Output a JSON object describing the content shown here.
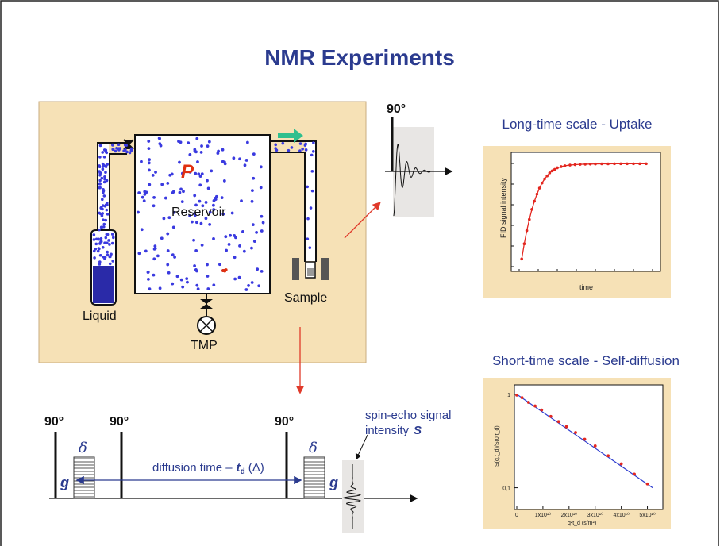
{
  "title": "NMR Experiments",
  "apparatus": {
    "liquid_label": "Liquid",
    "reservoir_label": "Reservoir",
    "pressure_label": "P",
    "sample_label": "Sample",
    "pump_label": "TMP"
  },
  "fid_pulse": {
    "angle_label": "90°"
  },
  "pulse_sequence": {
    "pulse1_label": "90°",
    "pulse2_label": "90°",
    "pulse3_label": "90°",
    "delta_left": "δ",
    "delta_right": "δ",
    "g_left": "g",
    "g_right": "g",
    "diffusion_prefix": "diffusion time –",
    "td_symbol": "t",
    "td_sub": "d",
    "td_paren": "(Δ)",
    "echo_label_line1": "spin-echo signal",
    "echo_label_line2": "intensity",
    "echo_symbol": "S"
  },
  "uptake_panel": {
    "heading": "Long-time scale - Uptake",
    "ylabel": "FID signal intensity",
    "xlabel": "time"
  },
  "diffusion_panel": {
    "heading": "Short-time scale - Self-diffusion",
    "ylabel": "S(q,t_d)/S(0,t_d)",
    "xlabel": "q²t_d (s/m²)",
    "y_ticks": [
      "1",
      "0,1"
    ],
    "x_ticks": [
      "0",
      "1x10¹⁰",
      "2x10¹⁰",
      "3x10¹⁰",
      "4x10¹⁰",
      "5x10¹⁰"
    ]
  },
  "colors": {
    "panel_bg": "#f6e1b6",
    "title": "#2b3b8f",
    "dot_blue": "#3a3ae0",
    "pressure_red": "#e03010",
    "arrow_red": "#e03a2a",
    "arrow_teal": "#2fbf8e",
    "uptake_curve": "#e3261f"
  },
  "chart_data": [
    {
      "type": "scatter",
      "title": "Long-time scale - Uptake",
      "xlabel": "time",
      "ylabel": "FID signal intensity",
      "x": [
        0.02,
        0.04,
        0.06,
        0.08,
        0.1,
        0.12,
        0.14,
        0.16,
        0.18,
        0.2,
        0.22,
        0.24,
        0.26,
        0.28,
        0.3,
        0.33,
        0.36,
        0.4,
        0.44,
        0.48,
        0.52,
        0.56,
        0.6,
        0.65,
        0.7,
        0.75,
        0.8,
        0.85,
        0.9,
        0.95,
        1.0
      ],
      "y": [
        0.06,
        0.21,
        0.34,
        0.45,
        0.55,
        0.63,
        0.7,
        0.76,
        0.81,
        0.85,
        0.88,
        0.91,
        0.93,
        0.945,
        0.96,
        0.972,
        0.98,
        0.987,
        0.991,
        0.994,
        0.996,
        0.997,
        0.998,
        0.999,
        0.999,
        1.0,
        1.0,
        1.0,
        1.0,
        1.0,
        1.0
      ],
      "xlim": [
        0,
        1.05
      ],
      "ylim": [
        0,
        1.05
      ],
      "fit_line": true
    },
    {
      "type": "scatter",
      "title": "Short-time scale - Self-diffusion",
      "xlabel": "q²t_d (s/m²)",
      "ylabel": "S(q,t_d)/S(0,t_d)",
      "log_y": true,
      "x": [
        0,
        2000000000.0,
        4500000000.0,
        7000000000.0,
        9500000000.0,
        13000000000.0,
        16000000000.0,
        19000000000.0,
        22500000000.0,
        26000000000.0,
        30000000000.0,
        35000000000.0,
        40000000000.0,
        45000000000.0,
        50000000000.0
      ],
      "y": [
        0.98,
        0.92,
        0.82,
        0.75,
        0.68,
        0.58,
        0.51,
        0.45,
        0.39,
        0.33,
        0.28,
        0.22,
        0.18,
        0.14,
        0.11
      ],
      "xlim": [
        0,
        55000000000.0
      ],
      "ylim": [
        0.08,
        1.1
      ],
      "x_ticks": [
        "0",
        "1x10¹⁰",
        "2x10¹⁰",
        "3x10¹⁰",
        "4x10¹⁰",
        "5x10¹⁰"
      ],
      "y_ticks": [
        "1",
        "0,1"
      ]
    }
  ]
}
